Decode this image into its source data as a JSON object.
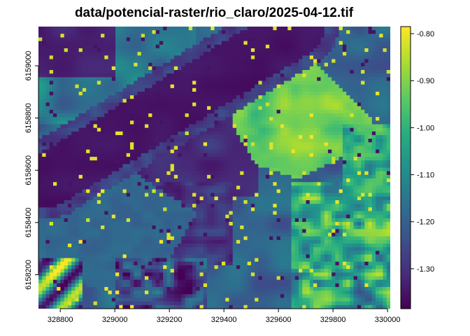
{
  "title": "data/potencial-raster/rio_claro/2025-04-12.tif",
  "chart_data": {
    "type": "heatmap",
    "title": "data/potencial-raster/rio_claro/2025-04-12.tif",
    "xlabel": "",
    "ylabel": "",
    "x_ticks": [
      328800,
      329000,
      329200,
      329400,
      329600,
      329800,
      330000
    ],
    "y_ticks": [
      6158200,
      6158400,
      6158600,
      6158800,
      6159000
    ],
    "xlim": [
      328720,
      330010
    ],
    "ylim": [
      6158070,
      6159150
    ],
    "colorbar": {
      "colormap": "viridis",
      "ticks": [
        "-0.80",
        "-0.90",
        "-1.00",
        "-1.10",
        "-1.20",
        "-1.30"
      ],
      "range": [
        -1.385,
        -0.785
      ]
    },
    "regions": [
      {
        "feature": "ne-bright-field",
        "center": [
          329630,
          6158820
        ],
        "value_approx": -0.88
      },
      {
        "feature": "diagonal-dark-road",
        "from": [
          328730,
          6158560
        ],
        "to": [
          329420,
          6159100
        ],
        "value_approx": -1.36
      },
      {
        "feature": "sw-teal-block",
        "center": [
          328960,
          6158300
        ],
        "value_approx": -1.19
      },
      {
        "feature": "central-dark-block",
        "center": [
          329400,
          6158450
        ],
        "value_approx": -1.33
      },
      {
        "feature": "se-bright-patches",
        "center": [
          329820,
          6158350
        ],
        "value_approx": -0.95
      }
    ]
  }
}
